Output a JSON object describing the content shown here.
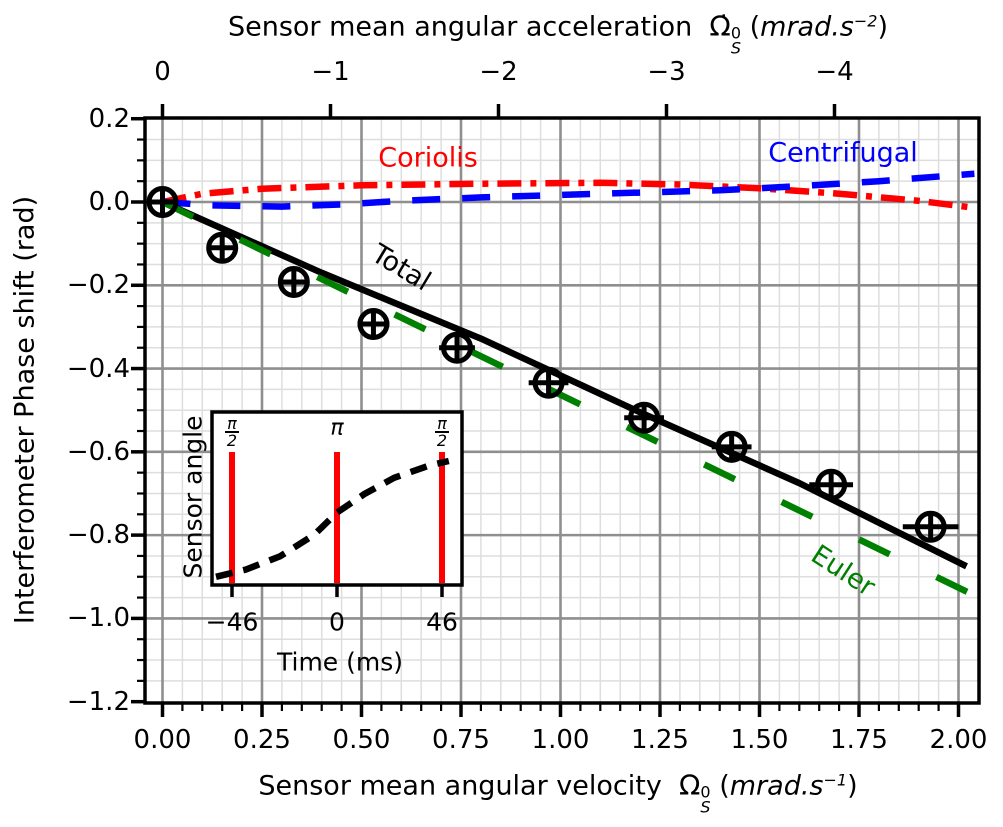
{
  "axes": {
    "top": {
      "title_text": "Sensor mean angular acceleration",
      "symbol": "Ω̇",
      "sym_sup": "0",
      "sym_sub": "S",
      "unit_open": "(",
      "unit_body": "mrad.s",
      "unit_exp": "−2",
      "unit_close": ")",
      "tick_labels": [
        "0",
        "−1",
        "−2",
        "−3",
        "−4"
      ]
    },
    "bottom": {
      "title_text": "Sensor mean angular velocity",
      "symbol": "Ω",
      "sym_sup": "0",
      "sym_sub": "S",
      "unit_open": "(",
      "unit_body": "mrad.s",
      "unit_exp": "−1",
      "unit_close": ")",
      "tick_labels": [
        "0.00",
        "0.25",
        "0.50",
        "0.75",
        "1.00",
        "1.25",
        "1.50",
        "1.75",
        "2.00"
      ]
    },
    "left": {
      "title": "Interferometer Phase shift (rad)",
      "tick_labels": [
        "0.2",
        "0.0",
        "−0.2",
        "−0.4",
        "−0.6",
        "−0.8",
        "−1.0",
        "−1.2"
      ]
    }
  },
  "chart_data": [
    {
      "type": "line",
      "title": "",
      "xlabel": "Sensor mean angular velocity Ω⁰S (mrad.s⁻¹)",
      "xlabel_top": "Sensor mean angular acceleration Ω̇⁰S (mrad.s⁻²)",
      "ylabel": "Interferometer Phase shift (rad)",
      "xlim": [
        -0.045,
        2.05
      ],
      "ylim": [
        -1.2,
        0.2
      ],
      "x_ticks": [
        0,
        0.25,
        0.5,
        0.75,
        1.0,
        1.25,
        1.5,
        1.75,
        2.0
      ],
      "y_ticks": [
        0.2,
        0.0,
        -0.2,
        -0.4,
        -0.6,
        -0.8,
        -1.0,
        -1.2
      ],
      "top_ticks": [
        0,
        -1,
        -2,
        -3,
        -4
      ],
      "grid": "major+minor",
      "legend_position": "none",
      "series": [
        {
          "name": "Coriolis",
          "color": "#ff0000",
          "style": "dashdot",
          "points": [
            [
              0,
              0
            ],
            [
              0.1,
              0.02
            ],
            [
              0.25,
              0.032
            ],
            [
              0.5,
              0.04
            ],
            [
              0.8,
              0.044
            ],
            [
              1.1,
              0.046
            ],
            [
              1.3,
              0.042
            ],
            [
              1.5,
              0.033
            ],
            [
              1.7,
              0.02
            ],
            [
              1.9,
              0.003
            ],
            [
              2.04,
              -0.014
            ]
          ]
        },
        {
          "name": "Centrifugal",
          "color": "#0000ff",
          "style": "dashed",
          "points": [
            [
              0,
              0
            ],
            [
              0.12,
              -0.008
            ],
            [
              0.3,
              -0.011
            ],
            [
              0.45,
              -0.006
            ],
            [
              0.6,
              0.003
            ],
            [
              0.8,
              0.011
            ],
            [
              1.1,
              0.02
            ],
            [
              1.4,
              0.028
            ],
            [
              1.6,
              0.038
            ],
            [
              1.8,
              0.05
            ],
            [
              2.04,
              0.068
            ]
          ]
        },
        {
          "name": "Total",
          "color": "#000000",
          "style": "solid",
          "points": [
            [
              0,
              0
            ],
            [
              0.4,
              -0.17
            ],
            [
              0.8,
              -0.328
            ],
            [
              1.2,
              -0.505
            ],
            [
              1.6,
              -0.675
            ],
            [
              2.02,
              -0.875
            ]
          ]
        },
        {
          "name": "Euler",
          "color": "#008000",
          "style": "longdash",
          "points": [
            [
              0,
              0
            ],
            [
              2.03,
              -0.94
            ]
          ]
        }
      ],
      "data_points": {
        "marker": "circle-plus-errorbar",
        "color": "#000000",
        "points": [
          [
            0.0,
            0.0,
            0.033,
            0.036
          ],
          [
            0.15,
            -0.11,
            0.035,
            0.036
          ],
          [
            0.33,
            -0.192,
            0.035,
            0.036
          ],
          [
            0.53,
            -0.293,
            0.04,
            0.036
          ],
          [
            0.74,
            -0.35,
            0.045,
            0.036
          ],
          [
            0.97,
            -0.434,
            0.05,
            0.036
          ],
          [
            1.21,
            -0.518,
            0.05,
            0.036
          ],
          [
            1.43,
            -0.588,
            0.05,
            0.036
          ],
          [
            1.68,
            -0.679,
            0.055,
            0.036
          ],
          [
            1.93,
            -0.78,
            0.07,
            0.036
          ]
        ]
      },
      "annotations": [
        {
          "text": "Coriolis",
          "color": "#ff0000"
        },
        {
          "text": "Centrifugal",
          "color": "#0000ff"
        },
        {
          "text": "Total",
          "color": "#000000"
        },
        {
          "text": "Euler",
          "color": "#008000"
        }
      ]
    },
    {
      "type": "line",
      "title": "",
      "xlabel": "Time (ms)",
      "ylabel": "Sensor angle",
      "x_ticks": [
        -46,
        0,
        46
      ],
      "x_tick_labels": [
        "−46",
        "0",
        "46"
      ],
      "pulses": {
        "color": "#ff0000",
        "x": [
          -46,
          0,
          46
        ],
        "labels": [
          "π/2",
          "π",
          "π/2"
        ]
      },
      "curve": {
        "name": "sensor-angle-vs-time",
        "color": "#000000",
        "style": "dashed",
        "points": [
          [
            -53,
            0.01
          ],
          [
            -40,
            0.07
          ],
          [
            -25,
            0.18
          ],
          [
            -10,
            0.36
          ],
          [
            0,
            0.545
          ],
          [
            12,
            0.7
          ],
          [
            25,
            0.835
          ],
          [
            40,
            0.935
          ],
          [
            49,
            0.975
          ]
        ]
      }
    }
  ]
}
